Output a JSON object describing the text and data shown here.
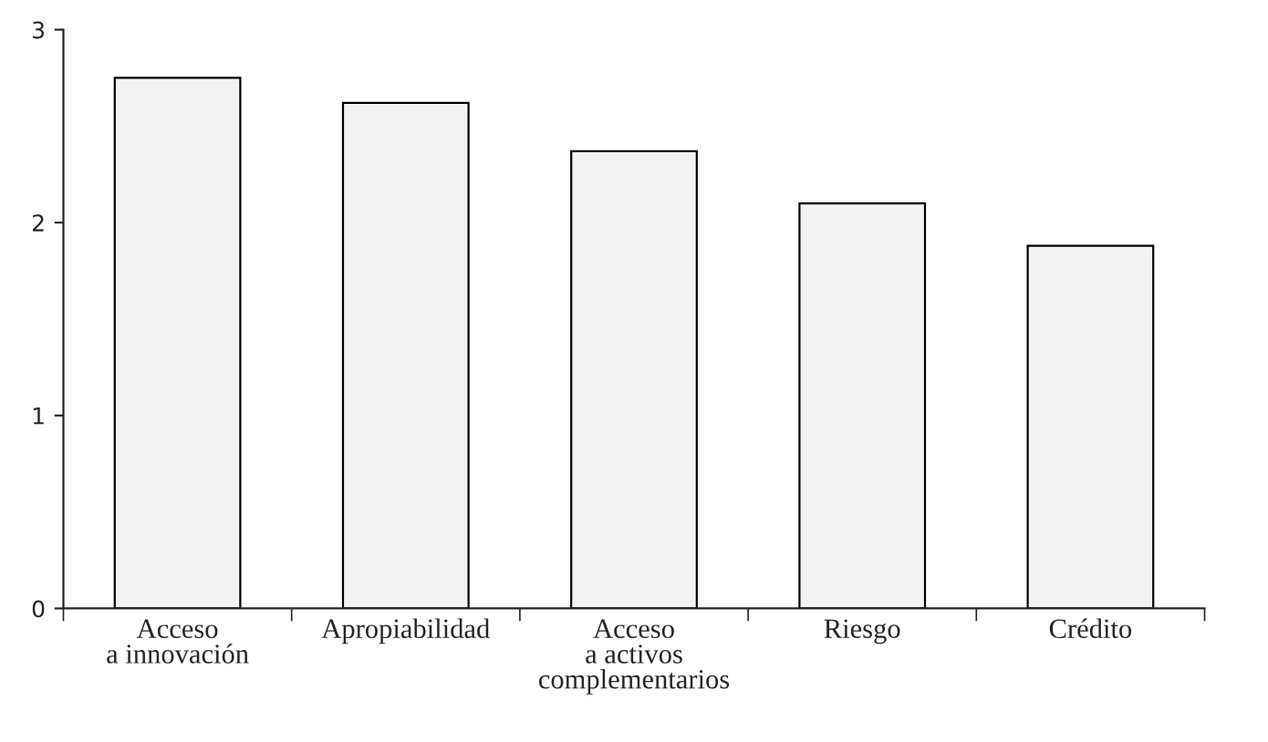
{
  "chart_data": {
    "type": "bar",
    "categories": [
      "Acceso\na innovación",
      "Apropiabilidad",
      "Acceso\na activos\ncomplementarios",
      "Riesgo",
      "Crédito"
    ],
    "values": [
      2.75,
      2.62,
      2.37,
      2.1,
      1.88
    ],
    "color": "#f2f2f2",
    "ylim": [
      0,
      3
    ],
    "yticks": [
      0,
      1,
      2,
      3
    ],
    "grid": false,
    "legend": false
  }
}
